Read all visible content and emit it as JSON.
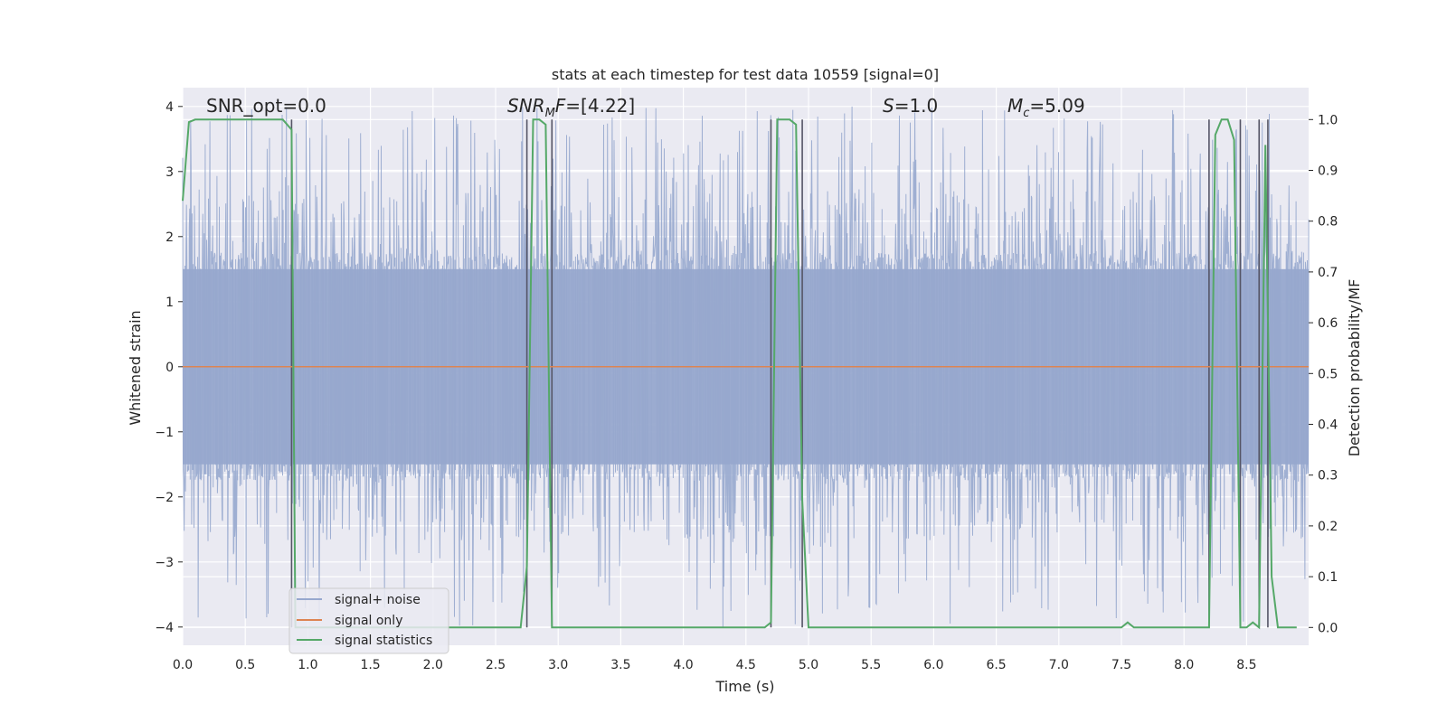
{
  "chart_data": {
    "type": "line",
    "title": "stats at each timestep for test data 10559 [signal=0]",
    "xlabel": "Time (s)",
    "ylabel": "Whitened strain",
    "ylabel_right": "Detection probability/MF",
    "xlim": [
      0.0,
      9.0
    ],
    "ylim": [
      -4.15,
      4.37
    ],
    "ylim_right": [
      -0.045,
      1.045
    ],
    "xticks": [
      "0.0",
      "0.5",
      "1.0",
      "1.5",
      "2.0",
      "2.5",
      "3.0",
      "3.5",
      "4.0",
      "4.5",
      "5.0",
      "5.5",
      "6.0",
      "6.5",
      "7.0",
      "7.5",
      "8.0",
      "8.5"
    ],
    "yticks_left": [
      "4",
      "3",
      "2",
      "1",
      "0",
      "−1",
      "−2",
      "−3",
      "−4"
    ],
    "yticks_right": [
      "1.0",
      "0.9",
      "0.8",
      "0.7",
      "0.6",
      "0.5",
      "0.4",
      "0.3",
      "0.2",
      "0.1",
      "0.0"
    ],
    "grid": true,
    "legend_position": "lower-left",
    "annotations": [
      {
        "text": "SNR_opt=0.0"
      },
      {
        "text": "SNR_M F=[4.22]",
        "main": "SNR",
        "sub": "M",
        "rest": "F=[4.22]"
      },
      {
        "text": "S=1.0",
        "main": "S",
        "rest": "=1.0"
      },
      {
        "text": "M_c=5.09",
        "main": "M",
        "sub": "c",
        "rest": "=5.09"
      }
    ],
    "series": [
      {
        "name": "signal+ noise",
        "color": "#97A8CE",
        "kind": "noise",
        "amplitude_core": 1.5,
        "amplitude_peak": 4.0
      },
      {
        "name": "signal only",
        "color": "#DD8452",
        "kind": "constant",
        "value": 0.0
      },
      {
        "name": "signal statistics",
        "color": "#55A868",
        "axis": "right",
        "x": [
          0.0,
          0.05,
          0.1,
          0.2,
          0.3,
          0.4,
          0.5,
          0.6,
          0.7,
          0.8,
          0.87,
          0.9,
          0.95,
          1.0,
          1.5,
          2.0,
          2.5,
          2.7,
          2.75,
          2.8,
          2.85,
          2.9,
          2.95,
          3.0,
          3.05,
          3.5,
          4.0,
          4.5,
          4.65,
          4.7,
          4.75,
          4.8,
          4.85,
          4.9,
          4.95,
          5.0,
          5.05,
          5.5,
          6.0,
          6.5,
          7.0,
          7.5,
          7.55,
          7.6,
          8.0,
          8.2,
          8.25,
          8.3,
          8.35,
          8.4,
          8.45,
          8.5,
          8.55,
          8.6,
          8.65,
          8.7,
          8.75,
          8.8,
          8.85,
          8.9
        ],
        "values": [
          0.84,
          0.995,
          1.0,
          1.0,
          1.0,
          1.0,
          1.0,
          1.0,
          1.0,
          1.0,
          0.98,
          0.0,
          0.0,
          0.0,
          0.0,
          0.0,
          0.0,
          0.0,
          0.12,
          1.0,
          1.0,
          0.99,
          0.0,
          0.0,
          0.0,
          0.0,
          0.0,
          0.0,
          0.0,
          0.01,
          1.0,
          1.0,
          1.0,
          0.99,
          0.25,
          0.0,
          0.0,
          0.0,
          0.0,
          0.0,
          0.0,
          0.0,
          0.01,
          0.0,
          0.0,
          0.0,
          0.97,
          1.0,
          1.0,
          0.96,
          0.0,
          0.0,
          0.01,
          0.0,
          0.95,
          0.1,
          0.0,
          0.0,
          0.0,
          0.0
        ]
      }
    ],
    "vertical_markers": [
      0.87,
      2.75,
      2.95,
      4.7,
      4.95,
      8.2,
      8.45,
      8.6,
      8.67
    ]
  }
}
